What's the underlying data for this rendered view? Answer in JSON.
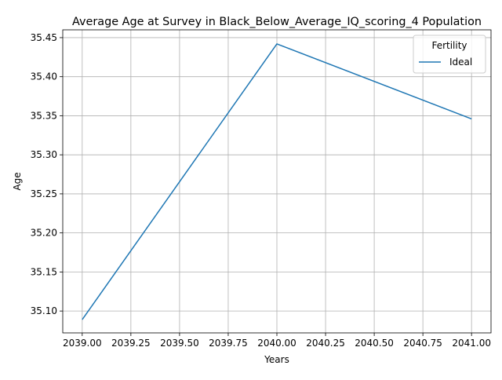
{
  "chart_data": {
    "type": "line",
    "title": "Average Age at Survey in Black_Below_Average_IQ_scoring_4 Population",
    "xlabel": "Years",
    "ylabel": "Age",
    "x": [
      2039,
      2040,
      2041
    ],
    "series": [
      {
        "name": "Ideal",
        "values": [
          35.089,
          35.442,
          35.346
        ],
        "color": "#1f77b4"
      }
    ],
    "xlim": [
      2038.9,
      2041.1
    ],
    "ylim": [
      35.072,
      35.46
    ],
    "xticks": [
      2039.0,
      2039.25,
      2039.5,
      2039.75,
      2040.0,
      2040.25,
      2040.5,
      2040.75,
      2041.0
    ],
    "xtick_labels": [
      "2039.00",
      "2039.25",
      "2039.50",
      "2039.75",
      "2040.00",
      "2040.25",
      "2040.50",
      "2040.75",
      "2041.00"
    ],
    "yticks": [
      35.1,
      35.15,
      35.2,
      35.25,
      35.3,
      35.35,
      35.4,
      35.45
    ],
    "ytick_labels": [
      "35.10",
      "35.15",
      "35.20",
      "35.25",
      "35.30",
      "35.35",
      "35.40",
      "35.45"
    ],
    "grid": true,
    "legend": {
      "title": "Fertility",
      "placement": "top-right"
    }
  }
}
